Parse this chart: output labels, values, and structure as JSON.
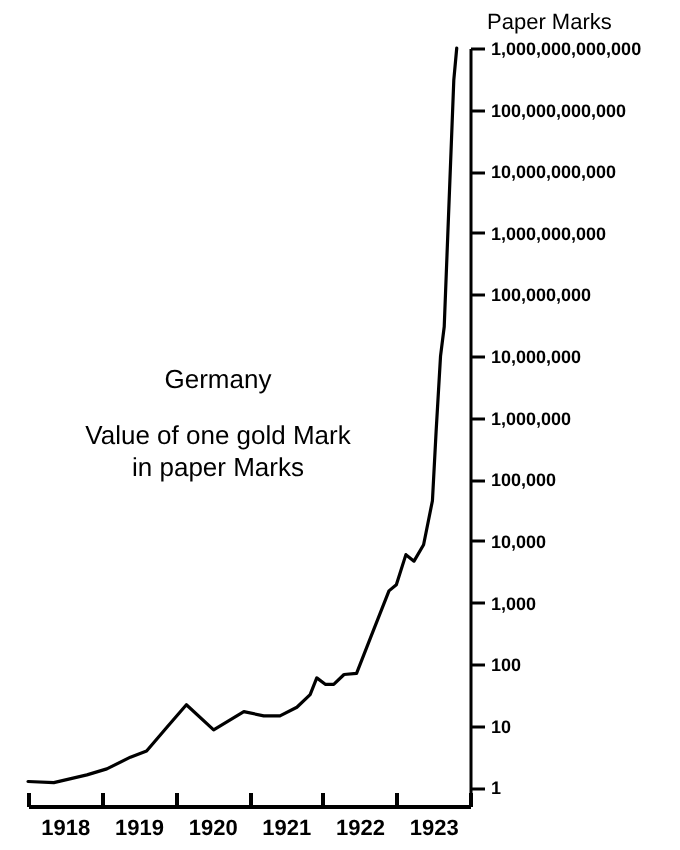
{
  "chart_data": {
    "type": "line",
    "ylabel": "Paper Marks",
    "annotations": [
      "Germany",
      "Value of one gold Mark\nin paper Marks"
    ],
    "x": [
      1918.0,
      1918.35,
      1918.8,
      1919.07,
      1919.39,
      1919.61,
      1919.88,
      1920.15,
      1920.52,
      1920.93,
      1921.2,
      1921.42,
      1921.65,
      1921.83,
      1921.92,
      1922.04,
      1922.15,
      1922.29,
      1922.46,
      1922.65,
      1922.9,
      1923.0,
      1923.13,
      1923.24,
      1923.37,
      1923.49,
      1923.54,
      1923.6,
      1923.65,
      1923.78,
      1923.82
    ],
    "series": [
      {
        "color": "#000000",
        "values": [
          1.25,
          1.2,
          1.6,
          2.0,
          3.1,
          3.9,
          9.3,
          22,
          8.6,
          17,
          14.5,
          14.5,
          20,
          32,
          60,
          47,
          47,
          68,
          71,
          270,
          1550,
          1950,
          6000,
          4700,
          8700,
          45000,
          600000,
          10000000,
          30000000,
          300000000000,
          1000000000000
        ]
      }
    ],
    "log": "y",
    "ylim": [
      0.5,
      1000000000000
    ],
    "yticks": [
      1,
      10,
      100,
      {
        "value": 1000,
        "label": "1,000"
      },
      {
        "value": 10000,
        "label": "10,000"
      },
      {
        "value": 100000,
        "label": "100,000"
      },
      {
        "value": 1000000,
        "label": "1,000,000"
      },
      {
        "value": 10000000,
        "label": "10,000,000"
      },
      {
        "value": 100000000,
        "label": "100,000,000"
      },
      {
        "value": 1000000000,
        "label": "1,000,000,000"
      },
      {
        "value": 10000000000,
        "label": "10,000,000,000"
      },
      {
        "value": 100000000000,
        "label": "100,000,000,000"
      },
      {
        "value": 1000000000000,
        "label": "1,000,000,000,000"
      }
    ],
    "xlim": [
      1918,
      1924
    ],
    "xticks": [
      {
        "value": 1918,
        "label": null
      },
      {
        "value": 1918.5,
        "label": "1918"
      },
      {
        "value": 1919,
        "label": null
      },
      {
        "value": 1919.5,
        "label": "1919"
      },
      {
        "value": 1920,
        "label": null
      },
      {
        "value": 1920.5,
        "label": "1920"
      },
      {
        "value": 1921,
        "label": null
      },
      {
        "value": 1921.5,
        "label": "1921"
      },
      {
        "value": 1922,
        "label": null
      },
      {
        "value": 1922.5,
        "label": "1922"
      },
      {
        "value": 1923,
        "label": null
      },
      {
        "value": 1923.5,
        "label": "1923"
      },
      {
        "value": 1924,
        "label": null
      }
    ],
    "grid": false,
    "marker": "none",
    "line_style": "solid"
  }
}
